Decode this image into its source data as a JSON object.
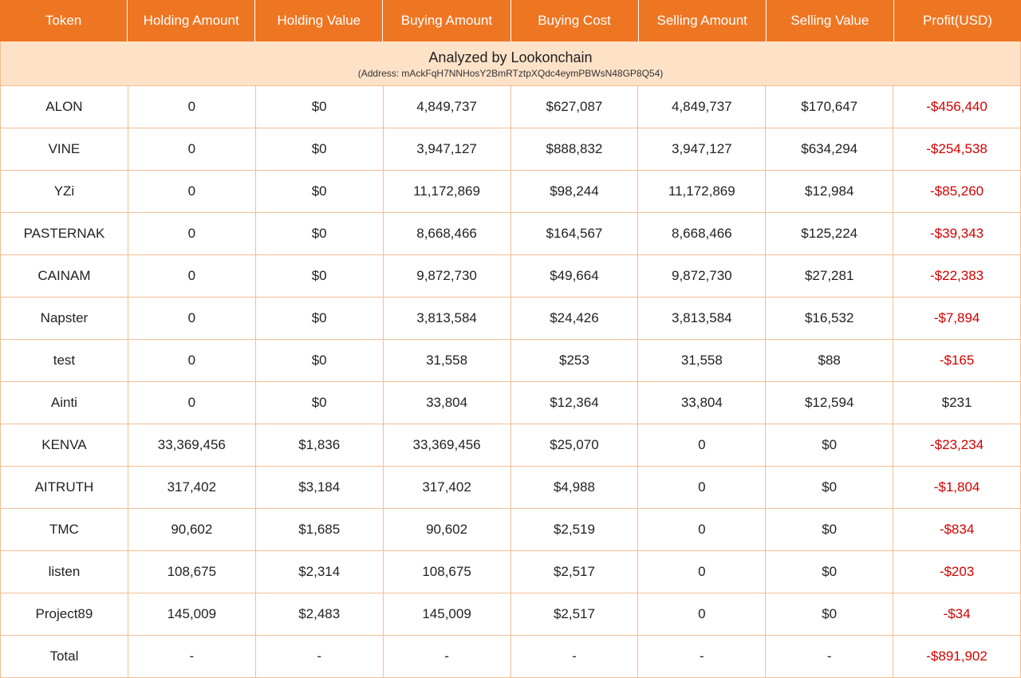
{
  "colors": {
    "header_bg": "#ee7623",
    "header_text": "#ffffff",
    "attribution_bg": "#fde2c8",
    "border": "#f3bd91",
    "text": "#222222",
    "negative": "#d40000"
  },
  "columns": [
    "Token",
    "Holding Amount",
    "Holding Value",
    "Buying Amount",
    "Buying Cost",
    "Selling Amount",
    "Selling Value",
    "Profit(USD)"
  ],
  "attribution": {
    "main": "Analyzed by Lookonchain",
    "sub": "(Address: mAckFqH7NNHosY2BmRTztpXQdc4eymPBWsN48GP8Q54)"
  },
  "rows": [
    {
      "token": "ALON",
      "holding_amount": "0",
      "holding_value": "$0",
      "buying_amount": "4,849,737",
      "buying_cost": "$627,087",
      "selling_amount": "4,849,737",
      "selling_value": "$170,647",
      "profit": "-$456,440",
      "profit_neg": true
    },
    {
      "token": "VINE",
      "holding_amount": "0",
      "holding_value": "$0",
      "buying_amount": "3,947,127",
      "buying_cost": "$888,832",
      "selling_amount": "3,947,127",
      "selling_value": "$634,294",
      "profit": "-$254,538",
      "profit_neg": true
    },
    {
      "token": "YZi",
      "holding_amount": "0",
      "holding_value": "$0",
      "buying_amount": "11,172,869",
      "buying_cost": "$98,244",
      "selling_amount": "11,172,869",
      "selling_value": "$12,984",
      "profit": "-$85,260",
      "profit_neg": true
    },
    {
      "token": "PASTERNAK",
      "holding_amount": "0",
      "holding_value": "$0",
      "buying_amount": "8,668,466",
      "buying_cost": "$164,567",
      "selling_amount": "8,668,466",
      "selling_value": "$125,224",
      "profit": "-$39,343",
      "profit_neg": true
    },
    {
      "token": "CAINAM",
      "holding_amount": "0",
      "holding_value": "$0",
      "buying_amount": "9,872,730",
      "buying_cost": "$49,664",
      "selling_amount": "9,872,730",
      "selling_value": "$27,281",
      "profit": "-$22,383",
      "profit_neg": true
    },
    {
      "token": "Napster",
      "holding_amount": "0",
      "holding_value": "$0",
      "buying_amount": "3,813,584",
      "buying_cost": "$24,426",
      "selling_amount": "3,813,584",
      "selling_value": "$16,532",
      "profit": "-$7,894",
      "profit_neg": true
    },
    {
      "token": "test",
      "holding_amount": "0",
      "holding_value": "$0",
      "buying_amount": "31,558",
      "buying_cost": "$253",
      "selling_amount": "31,558",
      "selling_value": "$88",
      "profit": "-$165",
      "profit_neg": true
    },
    {
      "token": "Ainti",
      "holding_amount": "0",
      "holding_value": "$0",
      "buying_amount": "33,804",
      "buying_cost": "$12,364",
      "selling_amount": "33,804",
      "selling_value": "$12,594",
      "profit": "$231",
      "profit_neg": false
    },
    {
      "token": "KENVA",
      "holding_amount": "33,369,456",
      "holding_value": "$1,836",
      "buying_amount": "33,369,456",
      "buying_cost": "$25,070",
      "selling_amount": "0",
      "selling_value": "$0",
      "profit": "-$23,234",
      "profit_neg": true
    },
    {
      "token": "AITRUTH",
      "holding_amount": "317,402",
      "holding_value": "$3,184",
      "buying_amount": "317,402",
      "buying_cost": "$4,988",
      "selling_amount": "0",
      "selling_value": "$0",
      "profit": "-$1,804",
      "profit_neg": true
    },
    {
      "token": "TMC",
      "holding_amount": "90,602",
      "holding_value": "$1,685",
      "buying_amount": "90,602",
      "buying_cost": "$2,519",
      "selling_amount": "0",
      "selling_value": "$0",
      "profit": "-$834",
      "profit_neg": true
    },
    {
      "token": "listen",
      "holding_amount": "108,675",
      "holding_value": "$2,314",
      "buying_amount": "108,675",
      "buying_cost": "$2,517",
      "selling_amount": "0",
      "selling_value": "$0",
      "profit": "-$203",
      "profit_neg": true
    },
    {
      "token": "Project89",
      "holding_amount": "145,009",
      "holding_value": "$2,483",
      "buying_amount": "145,009",
      "buying_cost": "$2,517",
      "selling_amount": "0",
      "selling_value": "$0",
      "profit": "-$34",
      "profit_neg": true
    },
    {
      "token": "Total",
      "holding_amount": "-",
      "holding_value": "-",
      "buying_amount": "-",
      "buying_cost": "-",
      "selling_amount": "-",
      "selling_value": "-",
      "profit": "-$891,902",
      "profit_neg": true
    }
  ]
}
